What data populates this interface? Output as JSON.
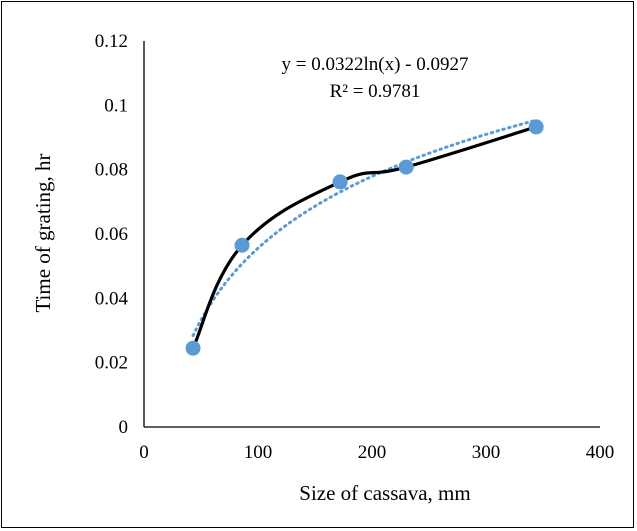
{
  "chart_data": {
    "type": "scatter",
    "title": "",
    "xlabel": "Size of cassava, mm",
    "ylabel": "Time of grating, hr",
    "xlim": [
      0,
      400
    ],
    "ylim": [
      0,
      0.12
    ],
    "x_ticks": [
      "0",
      "100",
      "200",
      "300",
      "400"
    ],
    "y_ticks": [
      "0",
      "0.02",
      "0.04",
      "0.06",
      "0.08",
      "0.1",
      "0.12"
    ],
    "grid": false,
    "legend": "none",
    "series": [
      {
        "x": [
          43,
          86,
          172,
          230,
          344
        ],
        "y": [
          0.0245,
          0.0565,
          0.0762,
          0.0808,
          0.0933
        ],
        "marker_color": "#5b9bd5",
        "line_color": "#000000",
        "line_style": "smooth"
      }
    ],
    "trendline": {
      "type": "logarithmic",
      "a": 0.0322,
      "b": -0.0927,
      "x_range": [
        43,
        344
      ],
      "color": "#5b9bd5",
      "style": "dotted",
      "equation": "y = 0.0322ln(x) - 0.0927",
      "r_squared": "R² = 0.9781"
    }
  }
}
